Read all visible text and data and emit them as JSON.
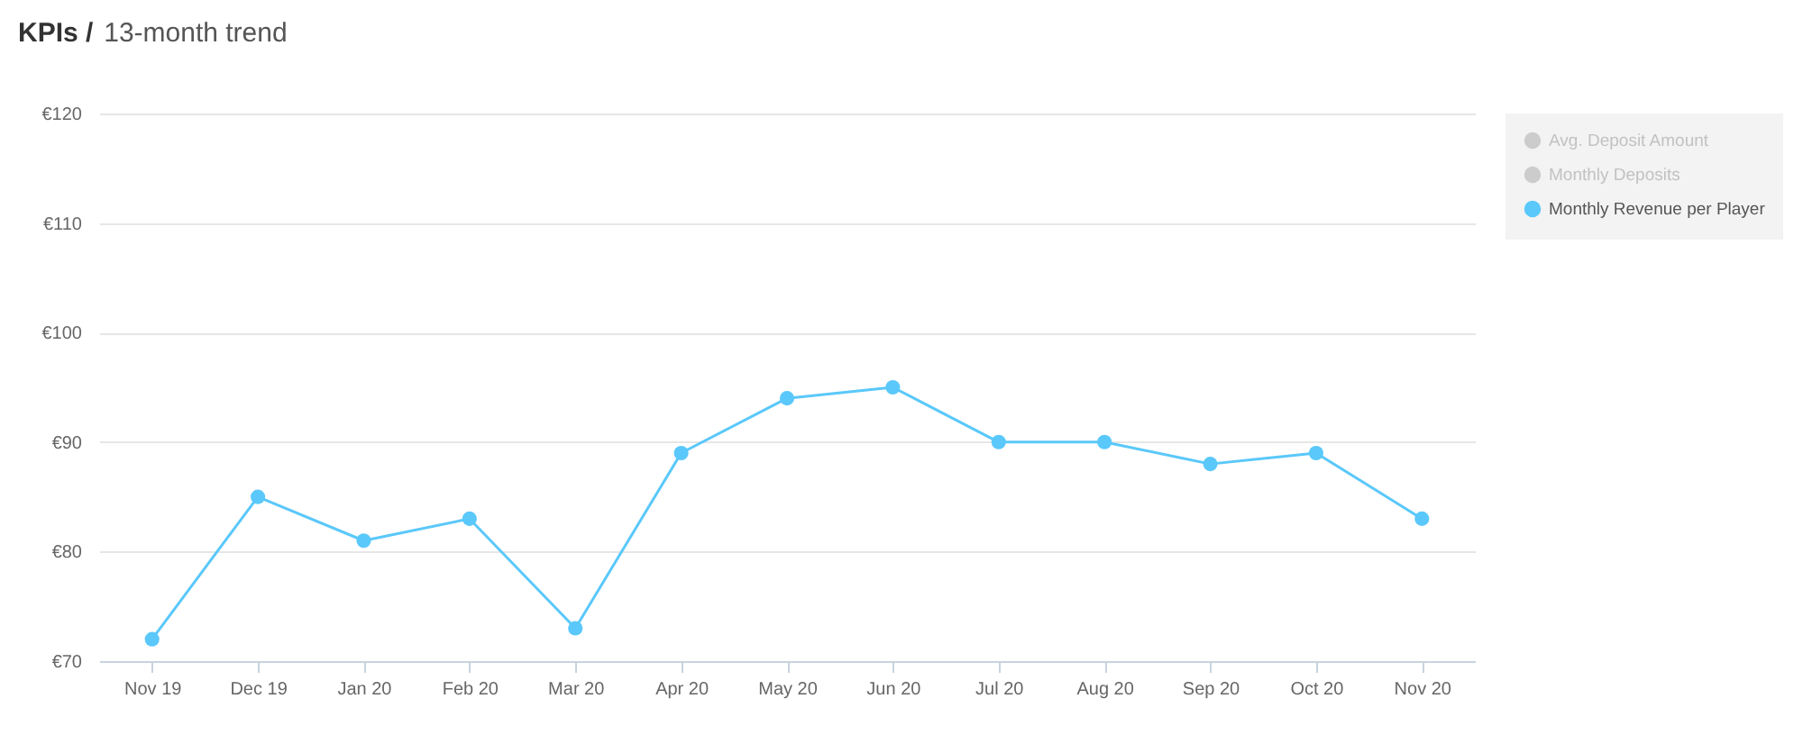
{
  "chart_data": {
    "type": "line",
    "title": "KPIs /",
    "subtitle": "13-month trend",
    "categories": [
      "Nov 19",
      "Dec 19",
      "Jan 20",
      "Feb 20",
      "Mar 20",
      "Apr 20",
      "May 20",
      "Jun 20",
      "Jul 20",
      "Aug 20",
      "Sep 20",
      "Oct 20",
      "Nov 20"
    ],
    "series": [
      {
        "name": "Avg. Deposit Amount",
        "color": "#cccccc",
        "values": [
          null,
          null,
          null,
          null,
          null,
          null,
          null,
          null,
          null,
          null,
          null,
          null,
          null
        ]
      },
      {
        "name": "Monthly Deposits",
        "color": "#cccccc",
        "values": [
          null,
          null,
          null,
          null,
          null,
          null,
          null,
          null,
          null,
          null,
          null,
          null,
          null
        ]
      },
      {
        "name": "Monthly Revenue per Player",
        "color": "#5ac8fa",
        "values": [
          72,
          85,
          81,
          83,
          73,
          89,
          94,
          95,
          90,
          90,
          88,
          89,
          83
        ]
      }
    ],
    "ylim": [
      70,
      120
    ],
    "yticks": [
      {
        "value": 70,
        "label": "€70"
      },
      {
        "value": 80,
        "label": "€80"
      },
      {
        "value": 90,
        "label": "€90"
      },
      {
        "value": 100,
        "label": "€100"
      },
      {
        "value": 110,
        "label": "€110"
      },
      {
        "value": 120,
        "label": "€120"
      }
    ],
    "grid": "y",
    "legend": "top right",
    "marker": "circle",
    "line_style": "solid"
  }
}
